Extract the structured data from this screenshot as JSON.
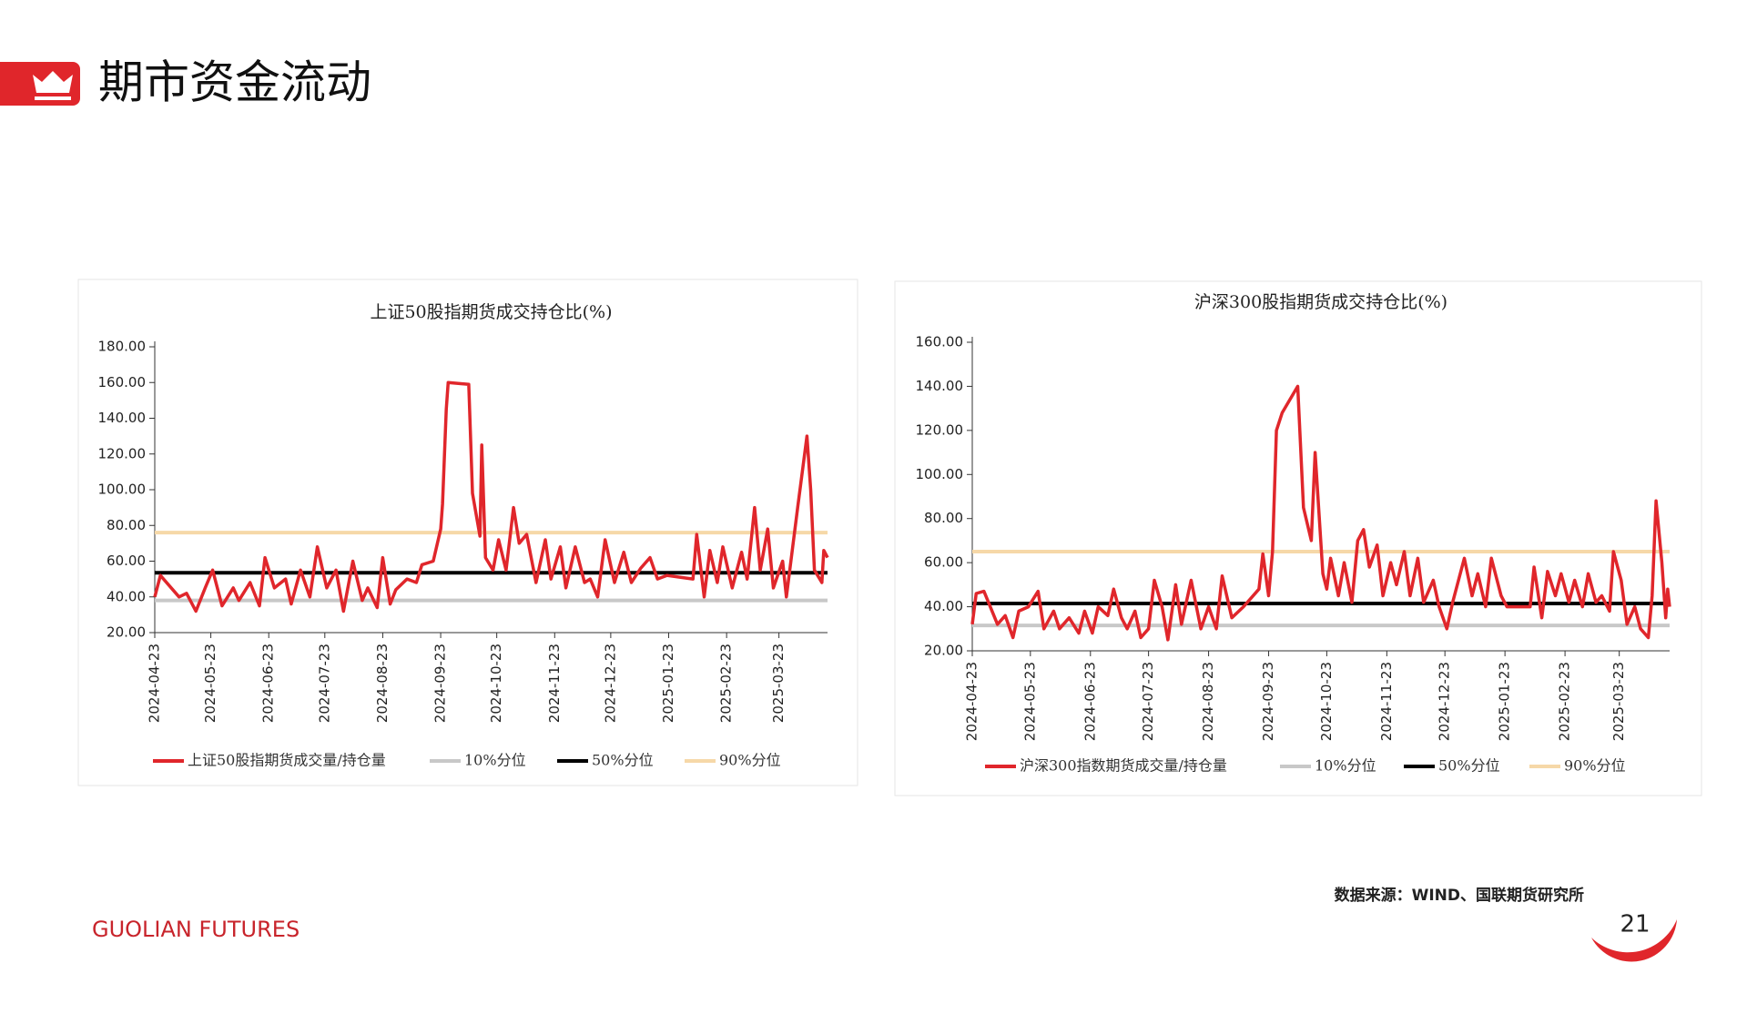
{
  "header": {
    "title": "期市资金流动"
  },
  "footer": {
    "source": "数据来源：WIND、国联期货研究所",
    "brand": "GUOLIAN FUTURES",
    "page": "21"
  },
  "chart_data": [
    {
      "type": "line",
      "title": "上证50股指期货成交持仓比(%)",
      "x": [
        "2024-04-23",
        "2024-04-26",
        "2024-05-06",
        "2024-05-10",
        "2024-05-15",
        "2024-05-20",
        "2024-05-24",
        "2024-05-29",
        "2024-06-04",
        "2024-06-07",
        "2024-06-13",
        "2024-06-18",
        "2024-06-21",
        "2024-06-26",
        "2024-07-02",
        "2024-07-05",
        "2024-07-10",
        "2024-07-15",
        "2024-07-19",
        "2024-07-24",
        "2024-07-29",
        "2024-08-02",
        "2024-08-07",
        "2024-08-12",
        "2024-08-15",
        "2024-08-20",
        "2024-08-23",
        "2024-08-27",
        "2024-08-30",
        "2024-09-05",
        "2024-09-10",
        "2024-09-13",
        "2024-09-19",
        "2024-09-23",
        "2024-09-24",
        "2024-09-26",
        "2024-09-27",
        "2024-10-08",
        "2024-10-10",
        "2024-10-14",
        "2024-10-15",
        "2024-10-17",
        "2024-10-21",
        "2024-10-24",
        "2024-10-28",
        "2024-11-01",
        "2024-11-04",
        "2024-11-08",
        "2024-11-13",
        "2024-11-18",
        "2024-11-21",
        "2024-11-26",
        "2024-11-29",
        "2024-12-04",
        "2024-12-09",
        "2024-12-12",
        "2024-12-16",
        "2024-12-20",
        "2024-12-25",
        "2024-12-30",
        "2025-01-03",
        "2025-01-08",
        "2025-01-13",
        "2025-01-17",
        "2025-01-22",
        "2025-02-05",
        "2025-02-07",
        "2025-02-11",
        "2025-02-14",
        "2025-02-18",
        "2025-02-21",
        "2025-02-26",
        "2025-03-03",
        "2025-03-06",
        "2025-03-10",
        "2025-03-13",
        "2025-03-17",
        "2025-03-20",
        "2025-03-25",
        "2025-03-27",
        "2025-04-02",
        "2025-04-07",
        "2025-04-09",
        "2025-04-11",
        "2025-04-15",
        "2025-04-16",
        "2025-04-18"
      ],
      "series": [
        {
          "name": "上证50股指期货成交量/持仓量",
          "color": "#e0262b",
          "values": [
            40,
            52,
            40,
            42,
            32,
            45,
            55,
            35,
            45,
            38,
            48,
            35,
            62,
            45,
            50,
            36,
            55,
            40,
            68,
            45,
            55,
            32,
            60,
            38,
            45,
            34,
            62,
            36,
            44,
            50,
            48,
            58,
            60,
            78,
            92,
            145,
            160,
            159,
            98,
            74,
            125,
            62,
            55,
            72,
            55,
            90,
            70,
            75,
            48,
            72,
            50,
            68,
            45,
            68,
            48,
            50,
            40,
            72,
            48,
            65,
            48,
            56,
            62,
            50,
            52,
            50,
            75,
            40,
            66,
            48,
            68,
            45,
            65,
            50,
            90,
            55,
            78,
            45,
            60,
            40,
            90,
            130,
            100,
            55,
            48,
            66,
            62
          ]
        }
      ],
      "reference_lines": [
        {
          "name": "10%分位",
          "color": "#c8c8c8",
          "value": 38
        },
        {
          "name": "50%分位",
          "color": "#000000",
          "value": 53.5
        },
        {
          "name": "90%分位",
          "color": "#f6d8a8",
          "value": 76
        }
      ],
      "xlim": [
        "2024-04-23",
        "2025-04-18"
      ],
      "xticks": [
        "2024-04-23",
        "2024-05-23",
        "2024-06-23",
        "2024-07-23",
        "2024-08-23",
        "2024-09-23",
        "2024-10-23",
        "2024-11-23",
        "2024-12-23",
        "2025-01-23",
        "2025-02-23",
        "2025-03-23"
      ],
      "ylim": [
        20,
        180
      ],
      "yticks": [
        {
          "value": 20,
          "label": "20.00"
        },
        {
          "value": 40,
          "label": "40.00"
        },
        {
          "value": 60,
          "label": "60.00"
        },
        {
          "value": 80,
          "label": "80.00"
        },
        {
          "value": 100,
          "label": "100.00"
        },
        {
          "value": 120,
          "label": "120.00"
        },
        {
          "value": 140,
          "label": "140.00"
        },
        {
          "value": 160,
          "label": "160.00"
        },
        {
          "value": 180,
          "label": "180.00"
        }
      ],
      "legend": "bottom"
    },
    {
      "type": "line",
      "title": "沪深300股指期货成交持仓比(%)",
      "x": [
        "2024-04-23",
        "2024-04-25",
        "2024-04-29",
        "2024-05-06",
        "2024-05-10",
        "2024-05-14",
        "2024-05-17",
        "2024-05-22",
        "2024-05-27",
        "2024-05-30",
        "2024-06-04",
        "2024-06-07",
        "2024-06-12",
        "2024-06-17",
        "2024-06-20",
        "2024-06-24",
        "2024-06-27",
        "2024-07-02",
        "2024-07-05",
        "2024-07-09",
        "2024-07-12",
        "2024-07-16",
        "2024-07-19",
        "2024-07-23",
        "2024-07-26",
        "2024-07-30",
        "2024-08-02",
        "2024-08-06",
        "2024-08-09",
        "2024-08-14",
        "2024-08-19",
        "2024-08-23",
        "2024-08-27",
        "2024-08-30",
        "2024-09-04",
        "2024-09-10",
        "2024-09-18",
        "2024-09-20",
        "2024-09-23",
        "2024-09-25",
        "2024-09-27",
        "2024-09-30",
        "2024-10-08",
        "2024-10-11",
        "2024-10-15",
        "2024-10-17",
        "2024-10-21",
        "2024-10-23",
        "2024-10-25",
        "2024-10-29",
        "2024-11-01",
        "2024-11-05",
        "2024-11-08",
        "2024-11-11",
        "2024-11-14",
        "2024-11-18",
        "2024-11-21",
        "2024-11-25",
        "2024-11-28",
        "2024-12-02",
        "2024-12-05",
        "2024-12-09",
        "2024-12-12",
        "2024-12-17",
        "2024-12-20",
        "2024-12-24",
        "2024-12-27",
        "2025-01-02",
        "2025-01-06",
        "2025-01-09",
        "2025-01-13",
        "2025-01-16",
        "2025-01-21",
        "2025-01-24",
        "2025-02-05",
        "2025-02-07",
        "2025-02-11",
        "2025-02-14",
        "2025-02-18",
        "2025-02-21",
        "2025-02-25",
        "2025-02-28",
        "2025-03-04",
        "2025-03-07",
        "2025-03-11",
        "2025-03-14",
        "2025-03-18",
        "2025-03-20",
        "2025-03-24",
        "2025-03-27",
        "2025-03-31",
        "2025-04-03",
        "2025-04-07",
        "2025-04-09",
        "2025-04-11",
        "2025-04-14",
        "2025-04-16",
        "2025-04-17",
        "2025-04-18"
      ],
      "series": [
        {
          "name": "沪深300指数期货成交量/持仓量",
          "color": "#e0262b",
          "values": [
            32,
            46,
            47,
            32,
            36,
            26,
            38,
            40,
            47,
            30,
            38,
            30,
            35,
            28,
            38,
            28,
            40,
            36,
            48,
            35,
            30,
            38,
            26,
            30,
            52,
            40,
            25,
            50,
            32,
            52,
            30,
            40,
            30,
            54,
            35,
            40,
            48,
            64,
            45,
            65,
            120,
            128,
            140,
            85,
            70,
            110,
            55,
            48,
            62,
            45,
            60,
            42,
            70,
            75,
            58,
            68,
            45,
            60,
            50,
            65,
            45,
            62,
            42,
            52,
            40,
            30,
            42,
            62,
            45,
            55,
            40,
            62,
            45,
            40,
            40,
            58,
            35,
            56,
            45,
            55,
            42,
            52,
            40,
            55,
            42,
            45,
            38,
            65,
            52,
            32,
            40,
            30,
            26,
            45,
            88,
            60,
            35,
            48,
            40
          ]
        }
      ],
      "reference_lines": [
        {
          "name": "10%分位",
          "color": "#c8c8c8",
          "value": 31.5
        },
        {
          "name": "50%分位",
          "color": "#000000",
          "value": 41.5
        },
        {
          "name": "90%分位",
          "color": "#f6d8a8",
          "value": 65
        }
      ],
      "xlim": [
        "2024-04-23",
        "2025-04-18"
      ],
      "xticks": [
        "2024-04-23",
        "2024-05-23",
        "2024-06-23",
        "2024-07-23",
        "2024-08-23",
        "2024-09-23",
        "2024-10-23",
        "2024-11-23",
        "2024-12-23",
        "2025-01-23",
        "2025-02-23",
        "2025-03-23"
      ],
      "ylim": [
        20,
        160
      ],
      "yticks": [
        {
          "value": 20,
          "label": "20.00"
        },
        {
          "value": 40,
          "label": "40.00"
        },
        {
          "value": 60,
          "label": "60.00"
        },
        {
          "value": 80,
          "label": "80.00"
        },
        {
          "value": 100,
          "label": "100.00"
        },
        {
          "value": 120,
          "label": "120.00"
        },
        {
          "value": 140,
          "label": "140.00"
        },
        {
          "value": 160,
          "label": "160.00"
        }
      ],
      "legend": "bottom"
    }
  ]
}
